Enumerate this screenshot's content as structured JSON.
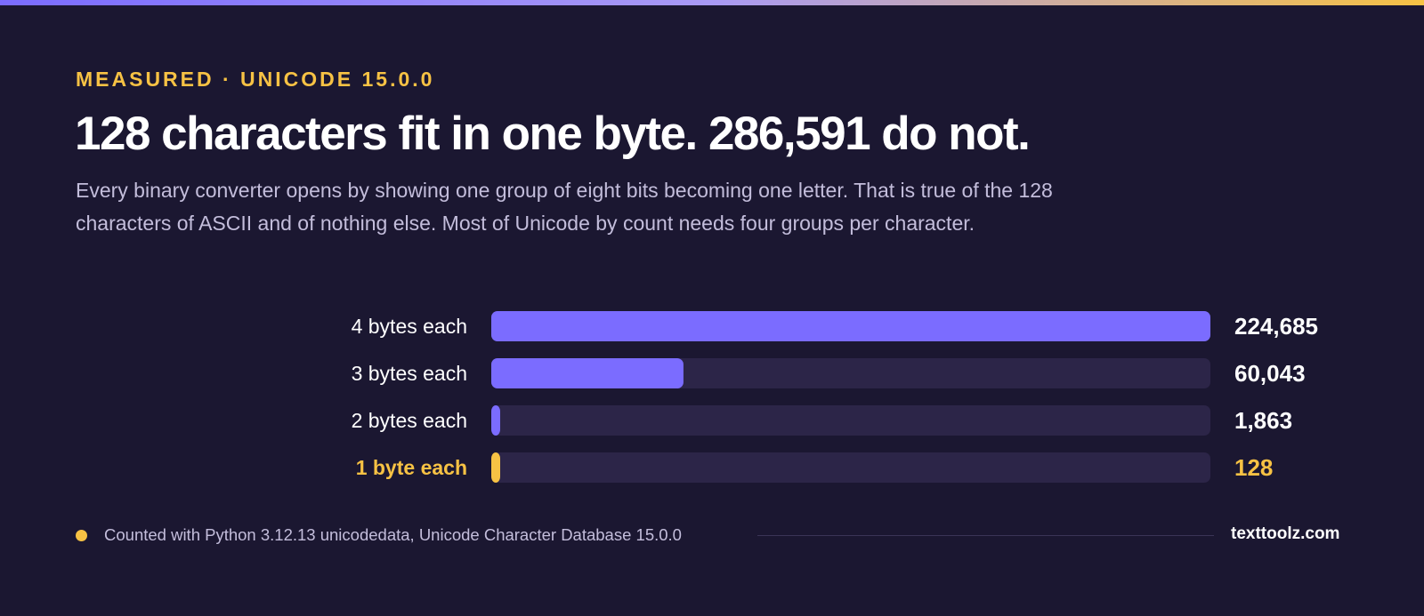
{
  "kicker": "MEASURED · UNICODE 15.0.0",
  "title": "128 characters fit in one byte. 286,591 do not.",
  "lede": "Every binary converter opens by showing one group of eight bits becoming one letter. That is true of the 128 characters of ASCII and of nothing else. Most of Unicode by count needs four groups per character.",
  "colors": {
    "background": "#1b1731",
    "bar": "#7b6cff",
    "highlight": "#f7c244",
    "track": "#2c2548",
    "label": "#ffffff"
  },
  "chart_data": {
    "type": "bar",
    "orientation": "horizontal",
    "categories": [
      "4 bytes each",
      "3 bytes each",
      "2 bytes each",
      "1 byte each"
    ],
    "values": [
      224685,
      60043,
      1863,
      128
    ],
    "value_labels": [
      "224,685",
      "60,043",
      "1,863",
      "128"
    ],
    "highlight_index": 3,
    "xlim": [
      0,
      224685
    ],
    "grid": false,
    "legend": "none"
  },
  "footer": {
    "note": "Counted with Python 3.12.13 unicodedata, Unicode Character Database 15.0.0",
    "brand": "texttoolz.com"
  }
}
